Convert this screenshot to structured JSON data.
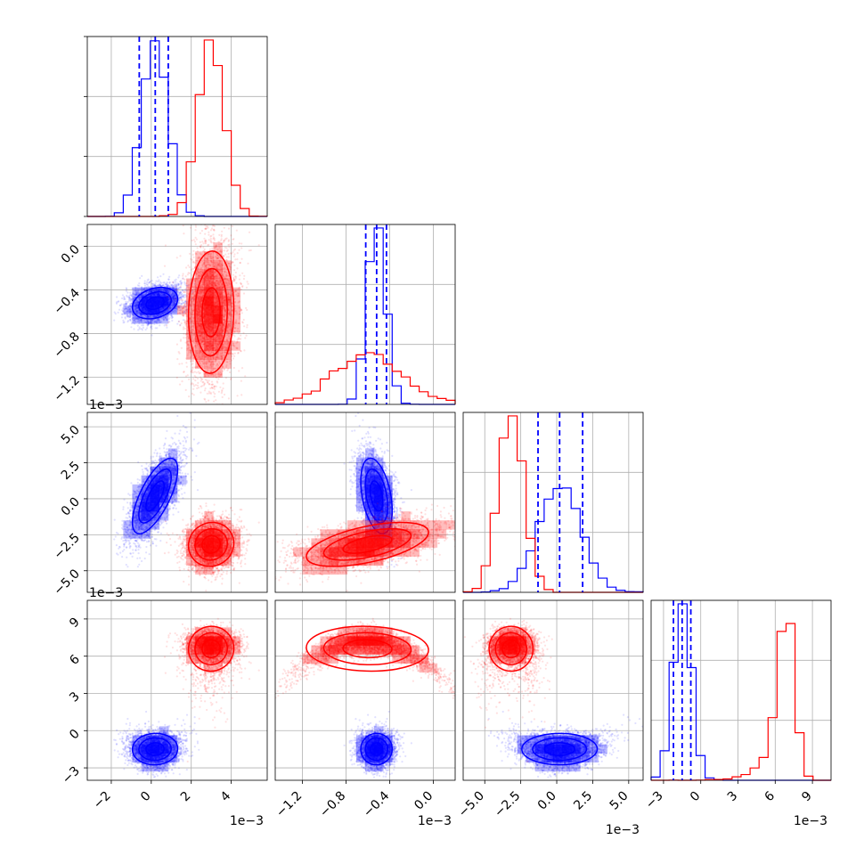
{
  "colors": {
    "blue": "#0000ff",
    "red": "#ff0000",
    "grid": "#b0b0b0",
    "axis": "#000000"
  },
  "chart_data": {
    "type": "corner",
    "grid": true,
    "series": [
      {
        "color": "blue",
        "name": ""
      },
      {
        "color": "red",
        "name": ""
      }
    ],
    "params": [
      {
        "range": [
          -3.2,
          5.8
        ],
        "ticks": [
          -2,
          0,
          2,
          4
        ],
        "tick_labels": [
          "−2",
          "0",
          "2",
          "4"
        ],
        "offset_text": "1e−3",
        "blue": {
          "mean": 0.2,
          "sd": 0.65
        },
        "red": {
          "mean": 3.0,
          "sd": 0.65
        }
      },
      {
        "range": [
          -1.45,
          0.2
        ],
        "ticks": [
          -1.2,
          -0.8,
          -0.4,
          0.0
        ],
        "tick_labels": [
          "−1.2",
          "−0.8",
          "−0.4",
          "0.0"
        ],
        "offset_text": "1e−3",
        "blue": {
          "mean": -0.52,
          "sd": 0.085
        },
        "red": {
          "mean": -0.62,
          "sd": 0.32
        }
      },
      {
        "range": [
          -6.5,
          6.0
        ],
        "ticks": [
          -5.0,
          -2.5,
          0.0,
          2.5,
          5.0
        ],
        "tick_labels": [
          "−5.0",
          "−2.5",
          "0.0",
          "2.5",
          "5.0"
        ],
        "offset_text": "1e−3",
        "blue": {
          "mean": 0.2,
          "sd": 1.5
        },
        "red": {
          "mean": -3.2,
          "sd": 0.9
        }
      },
      {
        "range": [
          -4.0,
          10.5
        ],
        "ticks": [
          -3,
          0,
          3,
          6,
          9
        ],
        "tick_labels": [
          "−3",
          "0",
          "3",
          "6",
          "9"
        ],
        "offset_text": "1e−3",
        "blue": {
          "mean": -1.5,
          "sd": 0.7
        },
        "red": {
          "mean": 7.2,
          "sd": 1.1
        }
      }
    ],
    "quantiles_blue": [
      [
        -0.6,
        0.2,
        0.85
      ],
      [
        -0.62,
        -0.52,
        -0.43
      ],
      [
        -1.3,
        0.2,
        1.8
      ],
      [
        -2.2,
        -1.5,
        -0.8
      ]
    ]
  }
}
